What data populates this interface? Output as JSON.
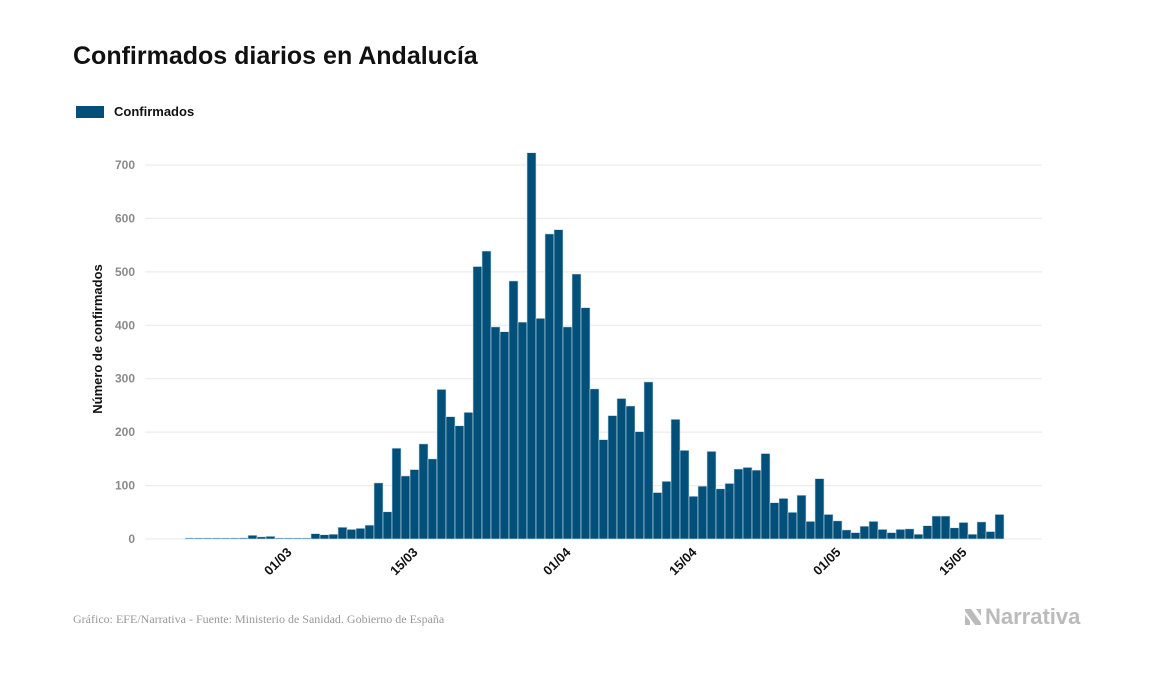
{
  "title": "Confirmados diarios en Andalucía",
  "footer": "Gráfico: EFE/Narrativa - Fuente: Ministerio de Sanidad. Gobierno de España",
  "logo_text": "Narrativa",
  "colors": {
    "bar": "#02507a",
    "grid": "#e8e8e8",
    "tick_label": "#8a8a8a"
  },
  "chart_data": {
    "type": "bar",
    "title": "Confirmados diarios en Andalucía",
    "ylabel": "Número de confirmados",
    "xlabel": "",
    "ylim": [
      0,
      750
    ],
    "yticks": [
      0,
      100,
      200,
      300,
      400,
      500,
      600,
      700
    ],
    "grid": true,
    "legend": {
      "placement": "top-left",
      "entries": [
        "Confirmados"
      ]
    },
    "xtick_labels": [
      "01/03",
      "15/03",
      "01/04",
      "15/04",
      "01/05",
      "15/05"
    ],
    "series": [
      {
        "name": "Confirmados",
        "x": [
          "19/02",
          "20/02",
          "21/02",
          "22/02",
          "23/02",
          "24/02",
          "25/02",
          "26/02",
          "27/02",
          "28/02",
          "29/02",
          "01/03",
          "02/03",
          "03/03",
          "04/03",
          "05/03",
          "06/03",
          "07/03",
          "08/03",
          "09/03",
          "10/03",
          "11/03",
          "12/03",
          "13/03",
          "14/03",
          "15/03",
          "16/03",
          "17/03",
          "18/03",
          "19/03",
          "20/03",
          "21/03",
          "22/03",
          "23/03",
          "24/03",
          "25/03",
          "26/03",
          "27/03",
          "28/03",
          "29/03",
          "30/03",
          "31/03",
          "01/04",
          "02/04",
          "03/04",
          "04/04",
          "05/04",
          "06/04",
          "07/04",
          "08/04",
          "09/04",
          "10/04",
          "11/04",
          "12/04",
          "13/04",
          "14/04",
          "15/04",
          "16/04",
          "17/04",
          "18/04",
          "19/04",
          "20/04",
          "21/04",
          "22/04",
          "23/04",
          "24/04",
          "25/04",
          "26/04",
          "27/04",
          "28/04",
          "29/04",
          "30/04",
          "01/05",
          "02/05",
          "03/05",
          "04/05",
          "05/05",
          "06/05",
          "07/05",
          "08/05",
          "09/05",
          "10/05",
          "11/05",
          "12/05",
          "13/05",
          "14/05",
          "15/05",
          "16/05",
          "17/05",
          "18/05",
          "19/05"
        ],
        "values": [
          0,
          0,
          0,
          0,
          0,
          0,
          2,
          7,
          4,
          5,
          0,
          0,
          0,
          0,
          10,
          8,
          9,
          22,
          18,
          20,
          26,
          105,
          51,
          170,
          118,
          130,
          178,
          150,
          280,
          229,
          212,
          237,
          510,
          539,
          397,
          388,
          483,
          406,
          723,
          413,
          571,
          579,
          397,
          496,
          433,
          281,
          186,
          231,
          263,
          249,
          201,
          294,
          87,
          108,
          224,
          166,
          80,
          99,
          164,
          94,
          104,
          131,
          134,
          129,
          160,
          68,
          76,
          50,
          82,
          33,
          113,
          46,
          34,
          17,
          12,
          24,
          33,
          18,
          12,
          18,
          19,
          9,
          25,
          43,
          43,
          21,
          31,
          9,
          32,
          14,
          46
        ]
      }
    ]
  }
}
